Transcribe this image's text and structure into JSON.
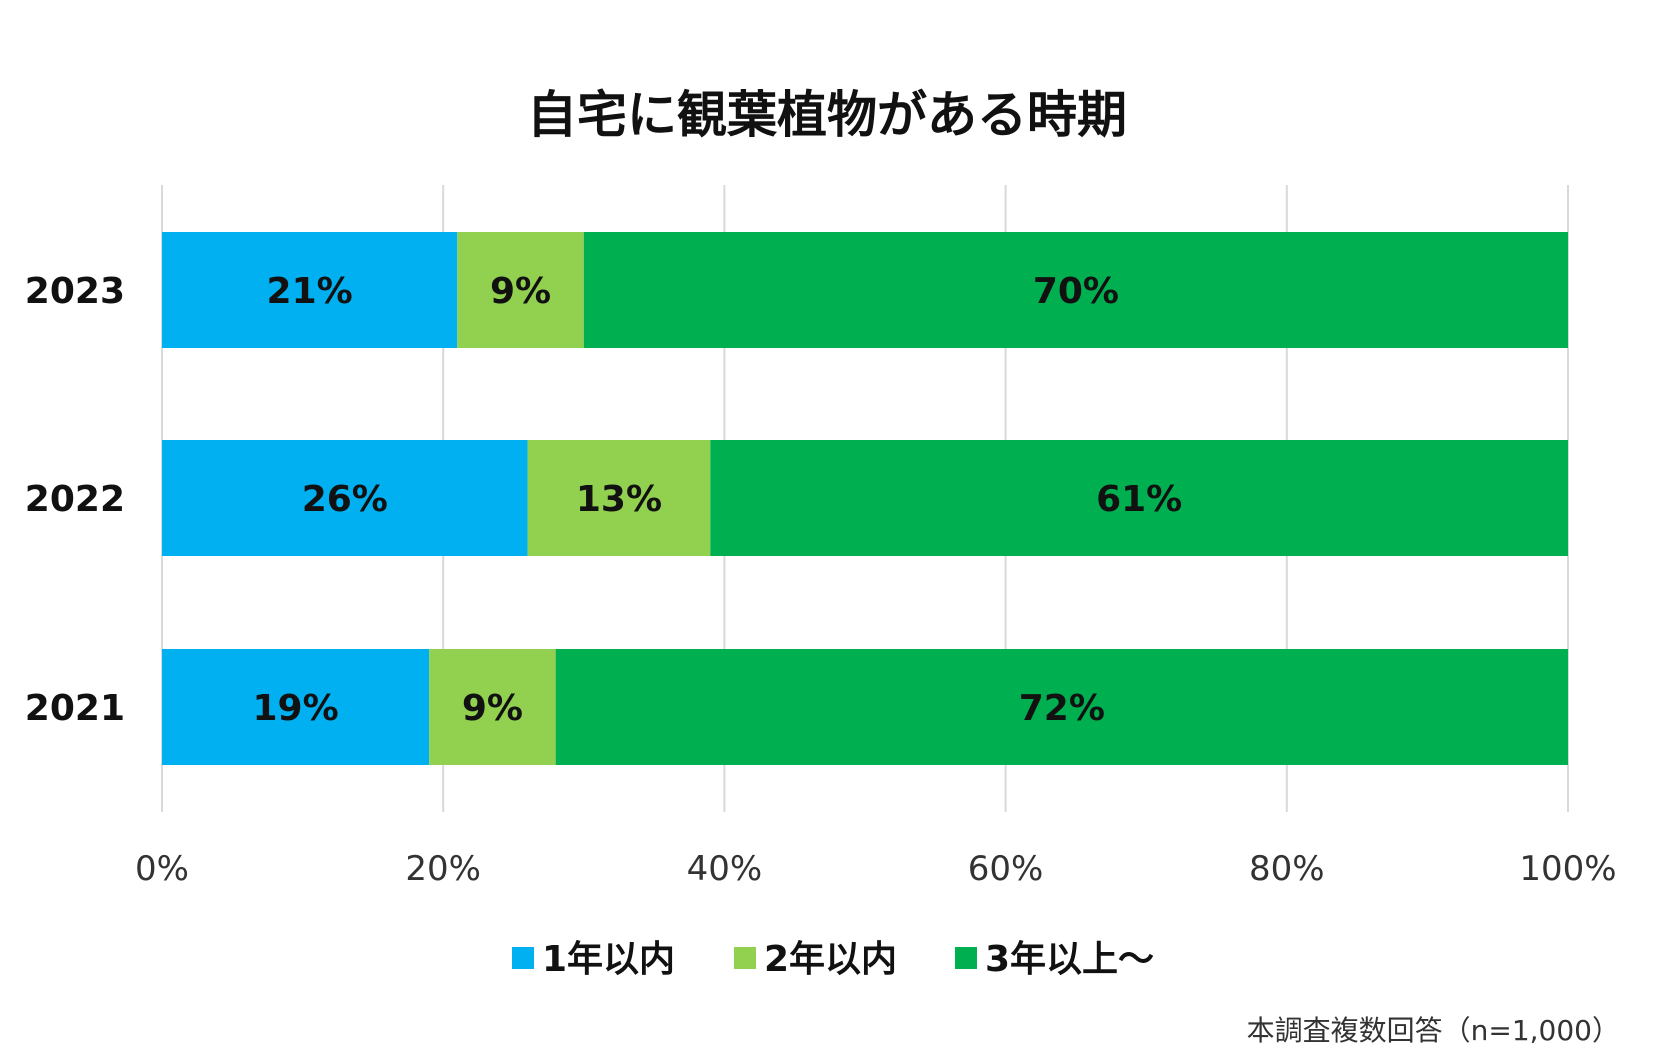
{
  "chart_data": {
    "type": "bar",
    "orientation": "horizontal",
    "stacked": true,
    "title": "自宅に観葉植物がある時期",
    "categories": [
      "2023",
      "2022",
      "2021"
    ],
    "series": [
      {
        "name": "1年以内",
        "color": "#00B0F0",
        "values": [
          21,
          26,
          19
        ],
        "labels": [
          "21%",
          "26%",
          "19%"
        ]
      },
      {
        "name": "2年以内",
        "color": "#92D050",
        "values": [
          9,
          13,
          9
        ],
        "labels": [
          "9%",
          "13%",
          "9%"
        ]
      },
      {
        "name": "3年以上～",
        "color": "#00B050",
        "values": [
          70,
          61,
          72
        ],
        "labels": [
          "70%",
          "61%",
          "72%"
        ]
      }
    ],
    "xlim": [
      0,
      100
    ],
    "xticks": [
      0,
      20,
      40,
      60,
      80,
      100
    ],
    "xtick_labels": [
      "0%",
      "20%",
      "40%",
      "60%",
      "80%",
      "100%"
    ],
    "grid": true,
    "legend_position": "bottom"
  },
  "footnote": "本調査複数回答（n=1,000）"
}
